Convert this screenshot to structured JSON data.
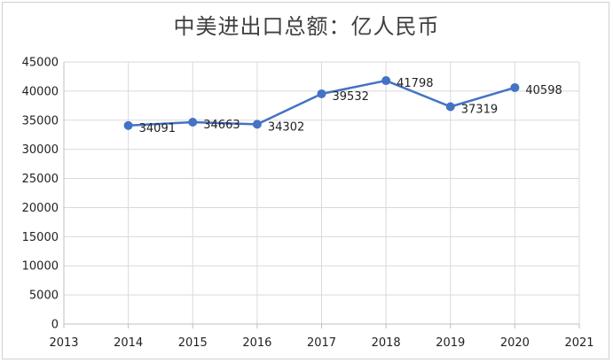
{
  "chart_data": {
    "type": "line",
    "title": "中美进出口总额：亿人民币",
    "xlabel": "",
    "ylabel": "",
    "x_ticks": [
      "2013",
      "2014",
      "2015",
      "2016",
      "2017",
      "2018",
      "2019",
      "2020",
      "2021"
    ],
    "y_ticks": [
      "0",
      "5000",
      "10000",
      "15000",
      "20000",
      "25000",
      "30000",
      "35000",
      "40000",
      "45000"
    ],
    "xlim": [
      2013,
      2021
    ],
    "ylim": [
      0,
      45000
    ],
    "grid": true,
    "legend": "none",
    "series": [
      {
        "x": [
          2014,
          2015,
          2016,
          2017,
          2018,
          2019,
          2020
        ],
        "values": [
          34091,
          34663,
          34302,
          39532,
          41798,
          37319,
          40598
        ],
        "labels": [
          "34091",
          "34663",
          "34302",
          "39532",
          "41798",
          "37319",
          "40598"
        ],
        "color": "#4472c4"
      }
    ]
  }
}
